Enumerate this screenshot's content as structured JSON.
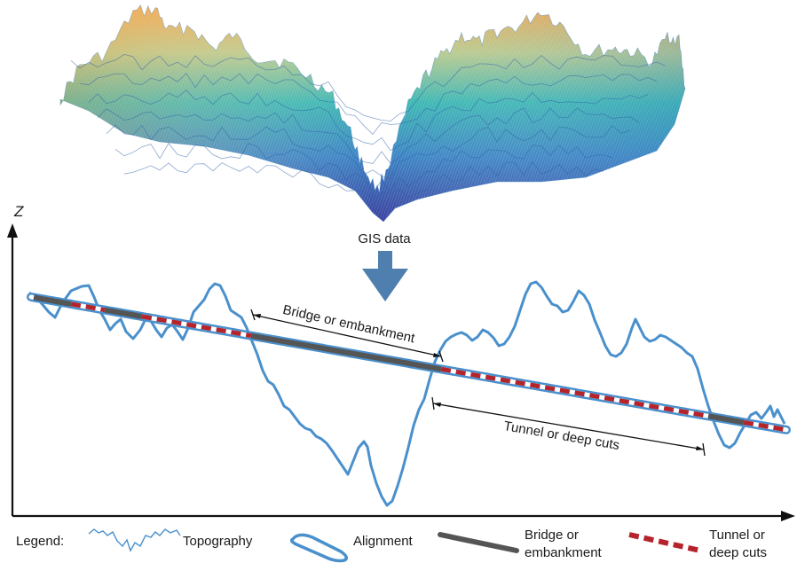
{
  "source_label": "GIS data",
  "axis": {
    "z_label": "Z"
  },
  "annotations": {
    "bridge": "Bridge or embankment",
    "tunnel": "Tunnel or deep cuts"
  },
  "legend": {
    "title": "Legend:",
    "topography": "Topography",
    "alignment": "Alignment",
    "bridge_line1": "Bridge or",
    "bridge_line2": "embankment",
    "tunnel_line1": "Tunnel or",
    "tunnel_line2": "deep cuts"
  },
  "colors": {
    "topography": "#4a90cc",
    "alignment_outline": "#4a90cc",
    "bridge": "#555555",
    "tunnel": "#b5232b",
    "arrow": "#4f7fae",
    "terrain_low": "#3b4fa3",
    "terrain_mid": "#36b3b5",
    "terrain_high": "#f0a848"
  },
  "icons": {
    "arrow": "down-arrow-icon",
    "terrain": "terrain-surface-3d"
  }
}
